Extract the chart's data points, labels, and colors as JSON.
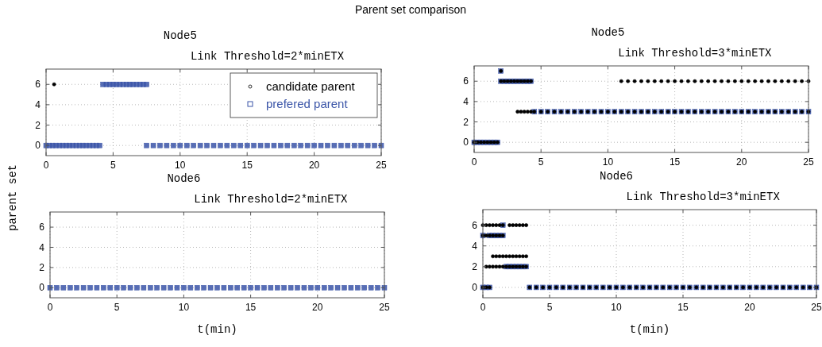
{
  "chart_data": [
    {
      "type": "scatter",
      "title": "Node5",
      "subtitle": "Link Threshold=2*minETX",
      "annotations": [
        "Parent set comparison"
      ],
      "xlim": [
        0,
        25
      ],
      "ylim": [
        -1,
        7.5
      ],
      "xticks": [
        0,
        5,
        10,
        15,
        20,
        25
      ],
      "yticks": [
        0,
        2,
        4,
        6
      ],
      "grid": true,
      "legend": "top right",
      "series": [
        {
          "name": "candidate parent",
          "color": "#000000",
          "marker": "circle",
          "x": [
            0.6
          ],
          "values": [
            6
          ]
        },
        {
          "name": "prefered parent",
          "color": "#3b55a8",
          "marker": "square",
          "x": [
            0,
            0.25,
            0.5,
            0.75,
            1,
            1.25,
            1.5,
            1.75,
            2,
            2.25,
            2.5,
            2.75,
            3,
            3.25,
            3.5,
            3.75,
            4,
            4.25,
            4.5,
            4.75,
            5,
            5.25,
            5.5,
            5.75,
            6,
            6.25,
            6.5,
            6.75,
            7,
            7.25,
            7.5,
            7.5,
            8,
            8.5,
            9,
            9.5,
            10,
            10.5,
            11,
            11.5,
            12,
            12.5,
            13,
            13.5,
            14,
            14.5,
            15,
            15.5,
            16,
            16.5,
            17,
            17.5,
            18,
            18.5,
            19,
            19.5,
            20,
            20.5,
            21,
            21.5,
            22,
            22.5,
            23,
            23.5,
            24,
            24.5,
            25
          ],
          "values": [
            0,
            0,
            0,
            0,
            0,
            0,
            0,
            0,
            0,
            0,
            0,
            0,
            0,
            0,
            0,
            0,
            0,
            6,
            6,
            6,
            6,
            6,
            6,
            6,
            6,
            6,
            6,
            6,
            6,
            6,
            6,
            0,
            0,
            0,
            0,
            0,
            0,
            0,
            0,
            0,
            0,
            0,
            0,
            0,
            0,
            0,
            0,
            0,
            0,
            0,
            0,
            0,
            0,
            0,
            0,
            0,
            0,
            0,
            0,
            0,
            0,
            0,
            0,
            0,
            0,
            0,
            0
          ]
        }
      ]
    },
    {
      "type": "scatter",
      "title": "Node5",
      "subtitle": "Link Threshold=3*minETX",
      "xlim": [
        0,
        25
      ],
      "ylim": [
        -1,
        7.5
      ],
      "xticks": [
        0,
        5,
        10,
        15,
        20,
        25
      ],
      "yticks": [
        0,
        2,
        4,
        6
      ],
      "grid": true,
      "series": [
        {
          "color": "#3b55a8",
          "marker": "square",
          "x": [
            0,
            0.25,
            0.5,
            0.75,
            1,
            1.25,
            1.5,
            1.75,
            2,
            2,
            2.25,
            2.5,
            2.75,
            3,
            3.25,
            3.5,
            3.75,
            4,
            4.25,
            4.5,
            5,
            5.5,
            6,
            6.5,
            7,
            7.5,
            8,
            8.5,
            9,
            9.5,
            10,
            10.5,
            11,
            11.5,
            12,
            12.5,
            13,
            13.5,
            14,
            14.5,
            15,
            15.5,
            16,
            16.5,
            17,
            17.5,
            18,
            18.5,
            19,
            19.5,
            20,
            20.5,
            21,
            21.5,
            22,
            22.5,
            23,
            23.5,
            24,
            24.5,
            25
          ],
          "values": [
            0,
            0,
            0,
            0,
            0,
            0,
            0,
            0,
            7,
            6,
            6,
            6,
            6,
            6,
            6,
            6,
            6,
            6,
            6,
            3,
            3,
            3,
            3,
            3,
            3,
            3,
            3,
            3,
            3,
            3,
            3,
            3,
            3,
            3,
            3,
            3,
            3,
            3,
            3,
            3,
            3,
            3,
            3,
            3,
            3,
            3,
            3,
            3,
            3,
            3,
            3,
            3,
            3,
            3,
            3,
            3,
            3,
            3,
            3,
            3,
            3
          ]
        },
        {
          "color": "#000000",
          "marker": "circle",
          "x": [
            0,
            0.25,
            0.5,
            0.75,
            1,
            1.25,
            1.5,
            1.75,
            2,
            2,
            2.25,
            2.5,
            2.75,
            3,
            3.25,
            3.5,
            3.75,
            4,
            4.25,
            3.25,
            3.5,
            3.75,
            4,
            4.25,
            4.5,
            5,
            5.5,
            6,
            6.5,
            7,
            7.5,
            8,
            8.5,
            9,
            9.5,
            10,
            10.5,
            11,
            11.5,
            12,
            12.5,
            13,
            13.5,
            14,
            14.5,
            15,
            15.5,
            16,
            16.5,
            17,
            17.5,
            18,
            18.5,
            19,
            19.5,
            20,
            20.5,
            21,
            21.5,
            22,
            22.5,
            23,
            23.5,
            24,
            24.5,
            25,
            11,
            11.5,
            12,
            12.5,
            13,
            13.5,
            14,
            14.5,
            15,
            15.5,
            16,
            16.5,
            17,
            17.5,
            18,
            18.5,
            19,
            19.5,
            20,
            20.5,
            21,
            21.5,
            22,
            22.5,
            23,
            23.5,
            24,
            24.5,
            25
          ],
          "values": [
            0,
            0,
            0,
            0,
            0,
            0,
            0,
            0,
            7,
            6,
            6,
            6,
            6,
            6,
            6,
            6,
            6,
            6,
            6,
            3,
            3,
            3,
            3,
            3,
            3,
            3,
            3,
            3,
            3,
            3,
            3,
            3,
            3,
            3,
            3,
            3,
            3,
            3,
            3,
            3,
            3,
            3,
            3,
            3,
            3,
            3,
            3,
            3,
            3,
            3,
            3,
            3,
            3,
            3,
            3,
            3,
            3,
            3,
            3,
            3,
            3,
            3,
            3,
            3,
            3,
            3,
            6,
            6,
            6,
            6,
            6,
            6,
            6,
            6,
            6,
            6,
            6,
            6,
            6,
            6,
            6,
            6,
            6,
            6,
            6,
            6,
            6,
            6,
            6,
            6,
            6,
            6,
            6,
            6,
            6
          ]
        }
      ]
    },
    {
      "type": "scatter",
      "title": "Node6",
      "subtitle": "Link Threshold=2*minETX",
      "xlabel": "t(min)",
      "ylabel": "parent set",
      "xlim": [
        0,
        25
      ],
      "ylim": [
        -1,
        7.5
      ],
      "xticks": [
        0,
        5,
        10,
        15,
        20,
        25
      ],
      "yticks": [
        0,
        2,
        4,
        6
      ],
      "grid": true,
      "series": [
        {
          "color": "#3b55a8",
          "marker": "square",
          "x": [
            0,
            0.5,
            1,
            1.5,
            2,
            2.5,
            3,
            3.5,
            4,
            4.5,
            5,
            5.5,
            6,
            6.5,
            7,
            7.5,
            8,
            8.5,
            9,
            9.5,
            10,
            10.5,
            11,
            11.5,
            12,
            12.5,
            13,
            13.5,
            14,
            14.5,
            15,
            15.5,
            16,
            16.5,
            17,
            17.5,
            18,
            18.5,
            19,
            19.5,
            20,
            20.5,
            21,
            21.5,
            22,
            22.5,
            23,
            23.5,
            24,
            24.5,
            25
          ],
          "values": [
            0,
            0,
            0,
            0,
            0,
            0,
            0,
            0,
            0,
            0,
            0,
            0,
            0,
            0,
            0,
            0,
            0,
            0,
            0,
            0,
            0,
            0,
            0,
            0,
            0,
            0,
            0,
            0,
            0,
            0,
            0,
            0,
            0,
            0,
            0,
            0,
            0,
            0,
            0,
            0,
            0,
            0,
            0,
            0,
            0,
            0,
            0,
            0,
            0,
            0,
            0
          ]
        }
      ]
    },
    {
      "type": "scatter",
      "title": "Node6",
      "subtitle": "Link Threshold=3*minETX",
      "xlabel": "t(min)",
      "xlim": [
        0,
        25
      ],
      "ylim": [
        -1,
        7.5
      ],
      "xticks": [
        0,
        5,
        10,
        15,
        20,
        25
      ],
      "yticks": [
        0,
        2,
        4,
        6
      ],
      "grid": true,
      "series": [
        {
          "color": "#3b55a8",
          "marker": "square",
          "x": [
            0,
            0.25,
            0.5,
            0,
            0.5,
            0.75,
            1,
            1.25,
            1.5,
            1.5,
            1.75,
            2,
            2.25,
            2.5,
            2.75,
            3,
            3.25,
            3.5,
            4,
            4.5,
            5,
            5.5,
            6,
            6.5,
            7,
            7.5,
            8,
            8.5,
            9,
            9.5,
            10,
            10.5,
            11,
            11.5,
            12,
            12.5,
            13,
            13.5,
            14,
            14.5,
            15,
            15.5,
            16,
            16.5,
            17,
            17.5,
            18,
            18.5,
            19,
            19.5,
            20,
            20.5,
            21,
            21.5,
            22,
            22.5,
            23,
            23.5,
            24,
            24.5,
            25
          ],
          "values": [
            0,
            0,
            0,
            5,
            5,
            5,
            5,
            5,
            5,
            6,
            2,
            2,
            2,
            2,
            2,
            2,
            2,
            0,
            0,
            0,
            0,
            0,
            0,
            0,
            0,
            0,
            0,
            0,
            0,
            0,
            0,
            0,
            0,
            0,
            0,
            0,
            0,
            0,
            0,
            0,
            0,
            0,
            0,
            0,
            0,
            0,
            0,
            0,
            0,
            0,
            0,
            0,
            0,
            0,
            0,
            0,
            0,
            0,
            0,
            0,
            0
          ]
        },
        {
          "color": "#000000",
          "marker": "circle",
          "x": [
            0,
            0.25,
            0.5,
            0.75,
            1,
            1.25,
            1.5,
            2,
            2.25,
            2.5,
            2.75,
            3,
            3.25,
            0,
            0.25,
            0.5,
            0.75,
            1,
            1.25,
            1.5,
            0.75,
            1,
            1.25,
            1.5,
            1.75,
            2,
            2.25,
            2.5,
            2.75,
            3,
            3.25,
            0.25,
            0.5,
            0.75,
            1,
            1.25,
            1.5,
            1.75,
            2,
            2.25,
            2.5,
            2.75,
            3,
            3.25,
            0,
            0.25,
            0.5,
            3.5,
            4,
            4.5,
            5,
            5.5,
            6,
            6.5,
            7,
            7.5,
            8,
            8.5,
            9,
            9.5,
            10,
            10.5,
            11,
            11.5,
            12,
            12.5,
            13,
            13.5,
            14,
            14.5,
            15,
            15.5,
            16,
            16.5,
            17,
            17.5,
            18,
            18.5,
            19,
            19.5,
            20,
            20.5,
            21,
            21.5,
            22,
            22.5,
            23,
            23.5,
            24,
            24.5,
            25
          ],
          "values": [
            6,
            6,
            6,
            6,
            6,
            6,
            6,
            6,
            6,
            6,
            6,
            6,
            6,
            5,
            5,
            5,
            5,
            5,
            5,
            5,
            3,
            3,
            3,
            3,
            3,
            3,
            3,
            3,
            3,
            3,
            3,
            2,
            2,
            2,
            2,
            2,
            2,
            2,
            2,
            2,
            2,
            2,
            2,
            2,
            0,
            0,
            0,
            0,
            0,
            0,
            0,
            0,
            0,
            0,
            0,
            0,
            0,
            0,
            0,
            0,
            0,
            0,
            0,
            0,
            0,
            0,
            0,
            0,
            0,
            0,
            0,
            0,
            0,
            0,
            0,
            0,
            0,
            0,
            0,
            0,
            0,
            0,
            0,
            0,
            0,
            0,
            0,
            0,
            0,
            0,
            0
          ]
        }
      ]
    }
  ]
}
